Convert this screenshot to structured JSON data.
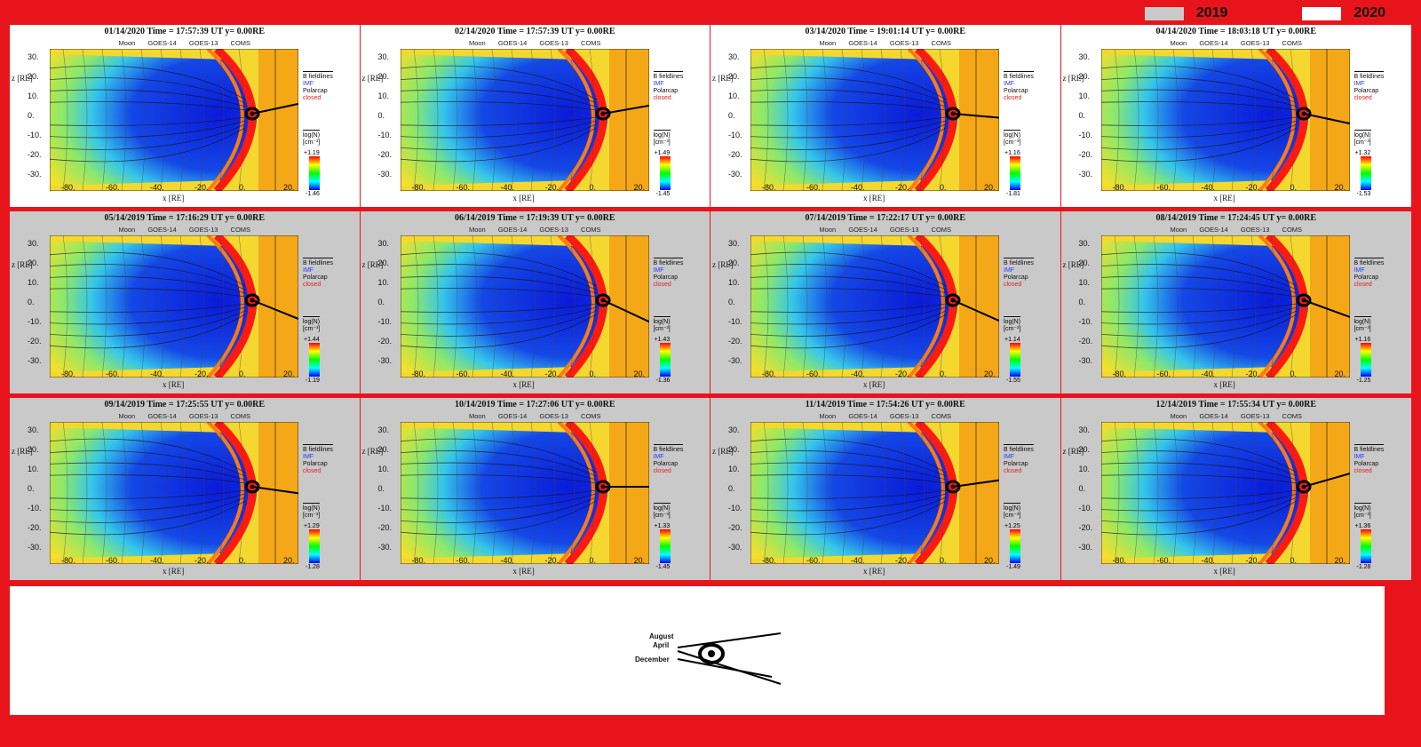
{
  "legend": {
    "label_2019": "2019",
    "label_2020": "2020",
    "color_2019": "#c9c9c9",
    "color_2020": "#ffffff"
  },
  "panel_common": {
    "moon": "Moon",
    "goes14": "GOES-14",
    "goes13": "GOES-13",
    "coms": "COMS",
    "ylabel": "z [RE]",
    "xlabel": "x [RE]",
    "bf_title": "B fieldlines",
    "bf_imf": "IMF",
    "bf_polarcap": "Polarcap",
    "bf_closed": "closed",
    "cb_title": "log(N)",
    "cb_unit": "[cm⁻³]",
    "yticks": [
      "30.",
      "20.",
      "10.",
      "0.",
      "-10.",
      "-20.",
      "-30."
    ],
    "xticks": [
      "-80.",
      "-60.",
      "-40.",
      "-20.",
      "0.",
      "20."
    ]
  },
  "rows": [
    {
      "year_style": "2020",
      "panels": [
        {
          "title": "01/14/2020 Time = 17:57:39 UT y= 0.00RE",
          "cmax": "+1.19",
          "cmin": "-1.46",
          "tilt": 12
        },
        {
          "title": "02/14/2020 Time = 17:57:39 UT y= 0.00RE",
          "cmax": "+1.49",
          "cmin": "-1.45",
          "tilt": 10
        },
        {
          "title": "03/14/2020 Time = 19:01:14 UT y= 0.00RE",
          "cmax": "+1.16",
          "cmin": "-1.81",
          "tilt": -5
        },
        {
          "title": "04/14/2020 Time = 18:03:18 UT y= 0.00RE",
          "cmax": "+1.32",
          "cmin": "-1.53",
          "tilt": -12
        }
      ]
    },
    {
      "year_style": "2019",
      "panels": [
        {
          "title": "05/14/2019 Time = 17:16:29 UT y= 0.00RE",
          "cmax": "+1.44",
          "cmin": "-1.19",
          "tilt": -22
        },
        {
          "title": "06/14/2019 Time = 17:19:39 UT y= 0.00RE",
          "cmax": "+1.43",
          "cmin": "-1.36",
          "tilt": -25
        },
        {
          "title": "07/14/2019 Time = 17:22:17 UT y= 0.00RE",
          "cmax": "+1.14",
          "cmin": "-1.55",
          "tilt": -24
        },
        {
          "title": "08/14/2019 Time = 17:24:45 UT y= 0.00RE",
          "cmax": "+1.16",
          "cmin": "-1.25",
          "tilt": -20
        }
      ]
    },
    {
      "year_style": "2019",
      "panels": [
        {
          "title": "09/14/2019 Time = 17:25:55 UT y= 0.00RE",
          "cmax": "+1.29",
          "cmin": "-1.28",
          "tilt": -8
        },
        {
          "title": "10/14/2019 Time = 17:27:06 UT y= 0.00RE",
          "cmax": "+1.33",
          "cmin": "-1.45",
          "tilt": 0
        },
        {
          "title": "11/14/2019 Time = 17:54:26 UT y= 0.00RE",
          "cmax": "+1.25",
          "cmin": "-1.49",
          "tilt": 8
        },
        {
          "title": "12/14/2019 Time = 17:55:34 UT y= 0.00RE",
          "cmax": "+1.36",
          "cmin": "-1.28",
          "tilt": 16
        }
      ]
    }
  ],
  "sketch": {
    "august": "August",
    "april": "April",
    "december": "December"
  }
}
